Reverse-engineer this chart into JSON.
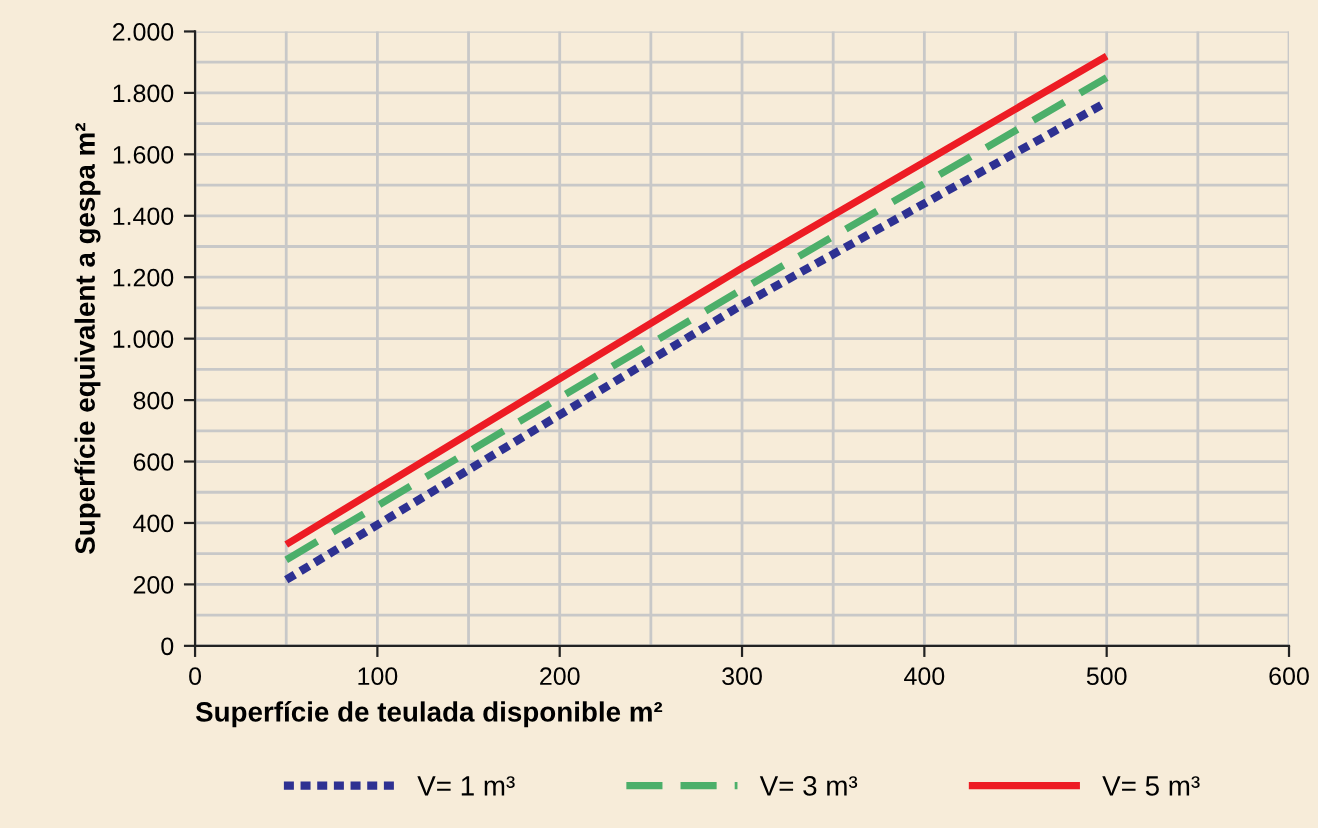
{
  "chart_data": {
    "type": "line",
    "xlabel": "Superfície de teulada disponible m²",
    "ylabel": "Superfície equivalent a gespa m²",
    "xlim": [
      0,
      600
    ],
    "ylim": [
      0,
      2000
    ],
    "xticks": [
      0,
      {
        "value": 50,
        "label": null
      },
      100,
      {
        "value": 150,
        "label": null
      },
      200,
      {
        "value": 250,
        "label": null
      },
      300,
      {
        "value": 350,
        "label": null
      },
      400,
      {
        "value": 450,
        "label": null
      },
      500,
      {
        "value": 550,
        "label": null
      },
      600
    ],
    "yticks": [
      {
        "value": 0,
        "label": "0"
      },
      {
        "value": 100,
        "label": null
      },
      {
        "value": 200,
        "label": "200"
      },
      {
        "value": 300,
        "label": null
      },
      {
        "value": 400,
        "label": "400"
      },
      {
        "value": 500,
        "label": null
      },
      {
        "value": 600,
        "label": "600"
      },
      {
        "value": 700,
        "label": null
      },
      {
        "value": 800,
        "label": "800"
      },
      {
        "value": 900,
        "label": null
      },
      {
        "value": 1000,
        "label": "1.000"
      },
      {
        "value": 1100,
        "label": null
      },
      {
        "value": 1200,
        "label": "1.200"
      },
      {
        "value": 1300,
        "label": null
      },
      {
        "value": 1400,
        "label": "1.400"
      },
      {
        "value": 1500,
        "label": null
      },
      {
        "value": 1600,
        "label": "1.600"
      },
      {
        "value": 1700,
        "label": null
      },
      {
        "value": 1800,
        "label": "1.800"
      },
      {
        "value": 1900,
        "label": null
      },
      {
        "value": 2000,
        "label": "2.000"
      }
    ],
    "grid": true,
    "legend": "bottom",
    "marker": "none",
    "series": [
      {
        "name": "V= 1 m³",
        "color": "#2e3192",
        "line_style": "dotted",
        "x": [
          50,
          300,
          500
        ],
        "values": [
          215,
          1110,
          1770
        ]
      },
      {
        "name": "V= 3 m³",
        "color": "#4caf6a",
        "line_style": "dashed",
        "x": [
          50,
          300,
          500
        ],
        "values": [
          280,
          1160,
          1850
        ]
      },
      {
        "name": "V= 5 m³",
        "color": "#ed1c24",
        "line_style": "solid",
        "x": [
          50,
          300,
          500
        ],
        "values": [
          330,
          1230,
          1920
        ]
      }
    ]
  }
}
